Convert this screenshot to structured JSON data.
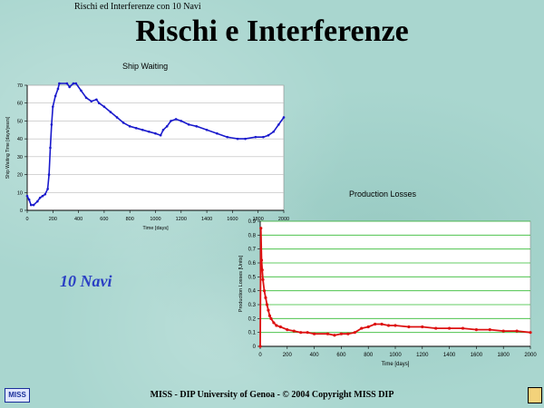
{
  "slide": {
    "header": "Rischi ed Interferenze con 10 Navi",
    "title": "Rischi e Interferenze",
    "navi_label": "10 Navi",
    "footer": "MISS - DIP University of Genoa  -  © 2004 Copyright MISS DIP",
    "logo_text": "MISS"
  },
  "chart_data": [
    {
      "type": "line",
      "title": "Ship Waiting",
      "xlabel": "Time [days]",
      "ylabel": "Ship Waiting Time [days/years]",
      "xlim": [
        0,
        2000
      ],
      "ylim": [
        0,
        70
      ],
      "xticks": [
        0,
        200,
        400,
        600,
        800,
        1000,
        1200,
        1400,
        1600,
        1800,
        2000
      ],
      "yticks": [
        0,
        10,
        20,
        30,
        40,
        50,
        60,
        70
      ],
      "grid": "horizontal",
      "series": [
        {
          "color": "#1a1acc",
          "points": [
            [
              0,
              8
            ],
            [
              15,
              6
            ],
            [
              30,
              3
            ],
            [
              50,
              3
            ],
            [
              80,
              5
            ],
            [
              100,
              7
            ],
            [
              120,
              8
            ],
            [
              140,
              9
            ],
            [
              160,
              12
            ],
            [
              170,
              20
            ],
            [
              180,
              35
            ],
            [
              190,
              48
            ],
            [
              200,
              58
            ],
            [
              220,
              64
            ],
            [
              240,
              68
            ],
            [
              250,
              71
            ],
            [
              310,
              71
            ],
            [
              330,
              69
            ],
            [
              360,
              71
            ],
            [
              380,
              71
            ],
            [
              420,
              67
            ],
            [
              460,
              63
            ],
            [
              500,
              61
            ],
            [
              540,
              62
            ],
            [
              560,
              60
            ],
            [
              600,
              58
            ],
            [
              650,
              55
            ],
            [
              700,
              52
            ],
            [
              750,
              49
            ],
            [
              800,
              47
            ],
            [
              850,
              46
            ],
            [
              900,
              45
            ],
            [
              950,
              44
            ],
            [
              1000,
              43
            ],
            [
              1040,
              42
            ],
            [
              1060,
              45
            ],
            [
              1090,
              47
            ],
            [
              1120,
              50
            ],
            [
              1160,
              51
            ],
            [
              1200,
              50
            ],
            [
              1260,
              48
            ],
            [
              1320,
              47
            ],
            [
              1400,
              45
            ],
            [
              1480,
              43
            ],
            [
              1560,
              41
            ],
            [
              1640,
              40
            ],
            [
              1700,
              40
            ],
            [
              1780,
              41
            ],
            [
              1840,
              41
            ],
            [
              1880,
              42
            ],
            [
              1920,
              44
            ],
            [
              1960,
              48
            ],
            [
              2000,
              52
            ]
          ]
        }
      ]
    },
    {
      "type": "line",
      "title": "Production Losses",
      "xlabel": "Time [days]",
      "ylabel": "Production Losses [Units]",
      "xlim": [
        0,
        2000
      ],
      "ylim": [
        0,
        0.9
      ],
      "xticks": [
        0,
        200,
        400,
        600,
        800,
        1000,
        1200,
        1400,
        1600,
        1800,
        2000
      ],
      "yticks": [
        0,
        0.1,
        0.2,
        0.3,
        0.4,
        0.5,
        0.6,
        0.7,
        0.8,
        0.9
      ],
      "grid": "horizontal",
      "series": [
        {
          "color": "#dd1111",
          "points": [
            [
              0,
              0
            ],
            [
              5,
              0.85
            ],
            [
              10,
              0.62
            ],
            [
              15,
              0.55
            ],
            [
              20,
              0.48
            ],
            [
              30,
              0.4
            ],
            [
              40,
              0.35
            ],
            [
              50,
              0.3
            ],
            [
              60,
              0.26
            ],
            [
              70,
              0.22
            ],
            [
              80,
              0.2
            ],
            [
              100,
              0.17
            ],
            [
              120,
              0.15
            ],
            [
              150,
              0.14
            ],
            [
              200,
              0.12
            ],
            [
              250,
              0.11
            ],
            [
              300,
              0.1
            ],
            [
              350,
              0.1
            ],
            [
              400,
              0.09
            ],
            [
              500,
              0.09
            ],
            [
              550,
              0.08
            ],
            [
              600,
              0.09
            ],
            [
              650,
              0.09
            ],
            [
              700,
              0.1
            ],
            [
              750,
              0.13
            ],
            [
              800,
              0.14
            ],
            [
              850,
              0.16
            ],
            [
              900,
              0.16
            ],
            [
              950,
              0.15
            ],
            [
              1000,
              0.15
            ],
            [
              1100,
              0.14
            ],
            [
              1200,
              0.14
            ],
            [
              1300,
              0.13
            ],
            [
              1400,
              0.13
            ],
            [
              1500,
              0.13
            ],
            [
              1600,
              0.12
            ],
            [
              1700,
              0.12
            ],
            [
              1800,
              0.11
            ],
            [
              1900,
              0.11
            ],
            [
              2000,
              0.1
            ]
          ]
        }
      ]
    }
  ]
}
